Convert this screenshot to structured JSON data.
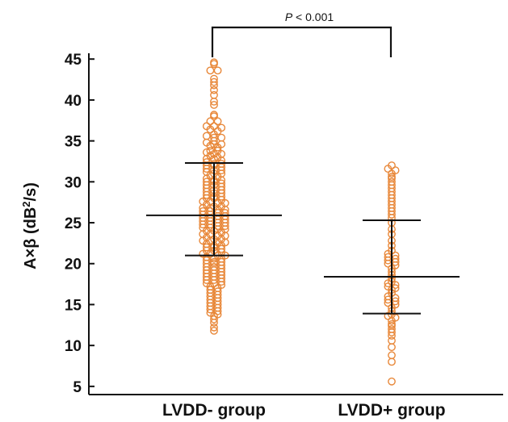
{
  "chart_data": {
    "type": "scatter",
    "plot_style": "dot plot with mean and SD bars",
    "categories": [
      "LVDD- group",
      "LVDD+ group"
    ],
    "ylabel": {
      "prefix": "A×β (dB",
      "sup": "2",
      "suffix": "/s)"
    },
    "yticks": [
      5,
      10,
      15,
      20,
      25,
      30,
      35,
      40,
      45
    ],
    "ylim": [
      4,
      46.5
    ],
    "significance": {
      "p_symbol": "P",
      "text": " < 0.001"
    },
    "marker_color": "#e8883a",
    "groups": [
      {
        "name": "LVDD- group",
        "mean": 25.9,
        "sd_upper": 32.3,
        "sd_lower": 21.0,
        "values": [
          44.6,
          44.4,
          43.6,
          43.6,
          42.6,
          42.2,
          41.8,
          41.2,
          40.6,
          39.8,
          39.4,
          38.2,
          38.0,
          37.4,
          37.4,
          36.8,
          36.8,
          36.6,
          36.4,
          36.2,
          35.8,
          35.6,
          35.4,
          35.4,
          35.0,
          34.8,
          34.6,
          34.6,
          34.4,
          34.2,
          33.8,
          33.8,
          33.6,
          33.4,
          33.4,
          33.2,
          33.0,
          32.8,
          32.8,
          32.6,
          32.4,
          32.2,
          32.2,
          32.0,
          32.0,
          31.8,
          31.6,
          31.4,
          31.4,
          31.2,
          31.0,
          31.0,
          30.8,
          30.6,
          30.4,
          30.2,
          30.2,
          30.0,
          30.0,
          29.8,
          29.6,
          29.6,
          29.4,
          29.2,
          29.0,
          29.0,
          28.8,
          28.6,
          28.6,
          28.4,
          28.2,
          28.2,
          28.0,
          28.0,
          27.8,
          27.6,
          27.6,
          27.4,
          27.4,
          27.2,
          27.0,
          27.0,
          26.8,
          26.8,
          26.6,
          26.6,
          26.4,
          26.4,
          26.2,
          26.2,
          26.0,
          26.0,
          25.8,
          25.8,
          25.6,
          25.6,
          25.4,
          25.4,
          25.2,
          25.2,
          25.0,
          25.0,
          24.8,
          24.8,
          24.6,
          24.6,
          24.4,
          24.4,
          24.2,
          24.2,
          24.0,
          24.0,
          23.8,
          23.6,
          23.6,
          23.4,
          23.4,
          23.2,
          23.0,
          23.0,
          22.8,
          22.8,
          22.6,
          22.6,
          22.4,
          22.2,
          22.2,
          22.0,
          22.0,
          21.8,
          21.6,
          21.6,
          21.4,
          21.2,
          21.2,
          21.0,
          21.0,
          20.8,
          20.6,
          20.6,
          20.4,
          20.2,
          20.2,
          20.0,
          20.0,
          19.8,
          19.6,
          19.6,
          19.4,
          19.2,
          19.2,
          19.0,
          18.8,
          18.8,
          18.6,
          18.4,
          18.4,
          18.2,
          18.0,
          18.0,
          17.8,
          17.6,
          17.6,
          17.4,
          17.2,
          17.0,
          16.8,
          16.6,
          16.4,
          16.2,
          16.0,
          15.8,
          15.6,
          15.4,
          15.2,
          15.0,
          14.8,
          14.6,
          14.4,
          14.2,
          14.0,
          13.8,
          13.6,
          13.2,
          12.8,
          12.2,
          11.8
        ]
      },
      {
        "name": "LVDD+ group",
        "mean": 18.4,
        "sd_upper": 25.3,
        "sd_lower": 13.9,
        "values": [
          32.0,
          31.6,
          31.4,
          31.0,
          30.6,
          30.4,
          30.0,
          29.6,
          29.2,
          28.8,
          28.4,
          28.0,
          27.6,
          27.2,
          26.8,
          26.4,
          26.0,
          25.6,
          25.0,
          24.2,
          23.6,
          22.8,
          22.2,
          21.6,
          21.2,
          21.0,
          20.8,
          20.6,
          20.4,
          20.2,
          20.0,
          19.8,
          19.4,
          19.0,
          18.6,
          18.2,
          17.8,
          17.6,
          17.4,
          17.2,
          17.0,
          16.8,
          16.4,
          16.0,
          15.8,
          15.6,
          15.4,
          15.2,
          15.0,
          14.6,
          14.2,
          13.8,
          13.6,
          13.4,
          13.0,
          12.6,
          12.4,
          12.0,
          11.6,
          11.2,
          10.6,
          9.8,
          8.8,
          8.0,
          5.6
        ]
      }
    ]
  }
}
